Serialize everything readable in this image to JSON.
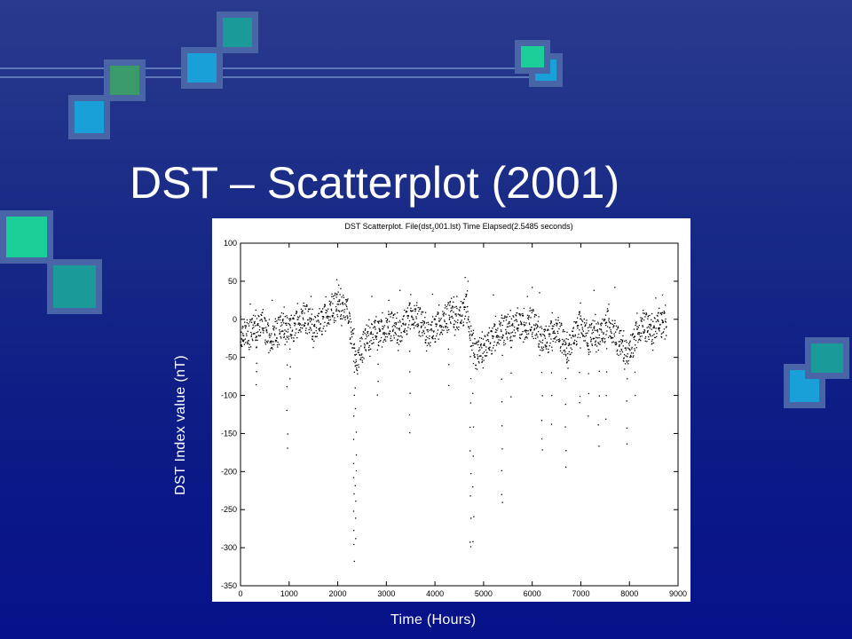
{
  "slide": {
    "title": "DST – Scatterplot (2001)",
    "ylabel": "DST Index value (nT)",
    "xlabel": "Time (Hours)"
  },
  "colors": {
    "background_top": "#2a3a8e",
    "background_bottom": "#07128a",
    "square_border": "#4a64a8",
    "square_green": "#3a9a6a",
    "square_blue": "#1aa0d8",
    "square_teal": "#1a9a98",
    "square_mint": "#1ad098",
    "point_color": "#000000"
  },
  "chart_data": {
    "type": "scatter",
    "title_prefix": "DST Scatterplot. File(dst",
    "title_subscript": "2",
    "title_suffix": "001.lst) Time Elapsed(2.5485 seconds)",
    "xlim": [
      0,
      9000
    ],
    "ylim": [
      -350,
      100
    ],
    "xticks": [
      0,
      1000,
      2000,
      3000,
      4000,
      5000,
      6000,
      7000,
      8000,
      9000
    ],
    "yticks": [
      100,
      50,
      0,
      -50,
      -100,
      -150,
      -200,
      -250,
      -300,
      -350
    ],
    "grid": false,
    "marker": "dot",
    "trend": [
      [
        0,
        -15
      ],
      [
        150,
        -25
      ],
      [
        300,
        -10
      ],
      [
        450,
        -5
      ],
      [
        600,
        -30
      ],
      [
        750,
        -20
      ],
      [
        900,
        -5
      ],
      [
        1050,
        -15
      ],
      [
        1200,
        -5
      ],
      [
        1350,
        0
      ],
      [
        1500,
        -10
      ],
      [
        1650,
        -5
      ],
      [
        1800,
        5
      ],
      [
        1950,
        15
      ],
      [
        2100,
        20
      ],
      [
        2200,
        10
      ],
      [
        2300,
        -30
      ],
      [
        2400,
        -60
      ],
      [
        2500,
        -40
      ],
      [
        2600,
        -25
      ],
      [
        2750,
        -15
      ],
      [
        2900,
        -20
      ],
      [
        3100,
        -10
      ],
      [
        3300,
        -15
      ],
      [
        3500,
        5
      ],
      [
        3700,
        -5
      ],
      [
        3900,
        -20
      ],
      [
        4050,
        -10
      ],
      [
        4200,
        -5
      ],
      [
        4350,
        10
      ],
      [
        4500,
        0
      ],
      [
        4650,
        15
      ],
      [
        4750,
        -30
      ],
      [
        4850,
        -50
      ],
      [
        5000,
        -35
      ],
      [
        5150,
        -30
      ],
      [
        5300,
        -20
      ],
      [
        5450,
        -15
      ],
      [
        5550,
        -10
      ],
      [
        5700,
        -5
      ],
      [
        5850,
        -15
      ],
      [
        6000,
        -5
      ],
      [
        6150,
        -20
      ],
      [
        6300,
        -30
      ],
      [
        6450,
        -15
      ],
      [
        6600,
        -25
      ],
      [
        6700,
        -40
      ],
      [
        6850,
        -25
      ],
      [
        7000,
        -5
      ],
      [
        7150,
        -30
      ],
      [
        7300,
        -15
      ],
      [
        7450,
        -20
      ],
      [
        7550,
        -5
      ],
      [
        7700,
        -25
      ],
      [
        7850,
        -35
      ],
      [
        8000,
        -45
      ],
      [
        8150,
        -20
      ],
      [
        8300,
        -10
      ],
      [
        8450,
        -15
      ],
      [
        8600,
        -5
      ],
      [
        8760,
        -10
      ]
    ],
    "storms": [
      {
        "x": 330,
        "y": [
          -25,
          -40,
          -55,
          -70,
          -85
        ]
      },
      {
        "x": 960,
        "y": [
          -30,
          -60,
          -90,
          -120,
          -150,
          -170
        ]
      },
      {
        "x": 1020,
        "y": [
          -40,
          -60,
          -80
        ]
      },
      {
        "x": 2330,
        "y": [
          -40,
          -70,
          -100,
          -130,
          -160,
          -190,
          -210,
          -230,
          -250,
          -280,
          -295,
          -320
        ]
      },
      {
        "x": 2370,
        "y": [
          -60,
          -90,
          -120,
          -150,
          -180,
          -200,
          -220,
          -240,
          -260,
          -290
        ]
      },
      {
        "x": 2820,
        "y": [
          -40,
          -60,
          -80,
          -100
        ]
      },
      {
        "x": 3480,
        "y": [
          -40,
          -70,
          -100,
          -125,
          -150
        ]
      },
      {
        "x": 4280,
        "y": [
          -40,
          -60,
          -85
        ]
      },
      {
        "x": 4730,
        "y": [
          -50,
          -80,
          -110,
          -140,
          -170,
          -200,
          -230,
          -260,
          -290,
          -300
        ]
      },
      {
        "x": 4790,
        "y": [
          -60,
          -100,
          -140,
          -180,
          -220,
          -260,
          -295
        ]
      },
      {
        "x": 5380,
        "y": [
          -50,
          -80,
          -110,
          -140,
          -170,
          -200,
          -230,
          -240
        ]
      },
      {
        "x": 5560,
        "y": [
          -40,
          -70,
          -100
        ]
      },
      {
        "x": 6200,
        "y": [
          -40,
          -70,
          -100,
          -130,
          -160,
          -170
        ]
      },
      {
        "x": 6400,
        "y": [
          -40,
          -70,
          -100,
          -140
        ]
      },
      {
        "x": 6690,
        "y": [
          -50,
          -80,
          -110,
          -140,
          -170,
          -195
        ]
      },
      {
        "x": 6980,
        "y": [
          -40,
          -70,
          -100,
          -110
        ]
      },
      {
        "x": 7150,
        "y": [
          -40,
          -70,
          -100,
          -130
        ]
      },
      {
        "x": 7370,
        "y": [
          -40,
          -70,
          -100,
          -140,
          -165
        ]
      },
      {
        "x": 7520,
        "y": [
          -40,
          -70,
          -100,
          -130
        ]
      },
      {
        "x": 7950,
        "y": [
          -50,
          -80,
          -110,
          -140,
          -165
        ]
      },
      {
        "x": 8120,
        "y": [
          -40,
          -70,
          -100
        ]
      }
    ],
    "positive_peaks": [
      [
        1980,
        52
      ],
      [
        2020,
        45
      ],
      [
        4620,
        55
      ],
      [
        4680,
        50
      ],
      [
        3280,
        38
      ],
      [
        6000,
        42
      ],
      [
        6150,
        35
      ],
      [
        7270,
        38
      ],
      [
        7700,
        42
      ],
      [
        650,
        25
      ],
      [
        1450,
        30
      ],
      [
        2700,
        30
      ],
      [
        3950,
        33
      ],
      [
        5200,
        32
      ],
      [
        5900,
        30
      ],
      [
        8540,
        28
      ],
      [
        8680,
        32
      ],
      [
        200,
        20
      ],
      [
        3050,
        25
      ],
      [
        4450,
        30
      ]
    ]
  }
}
